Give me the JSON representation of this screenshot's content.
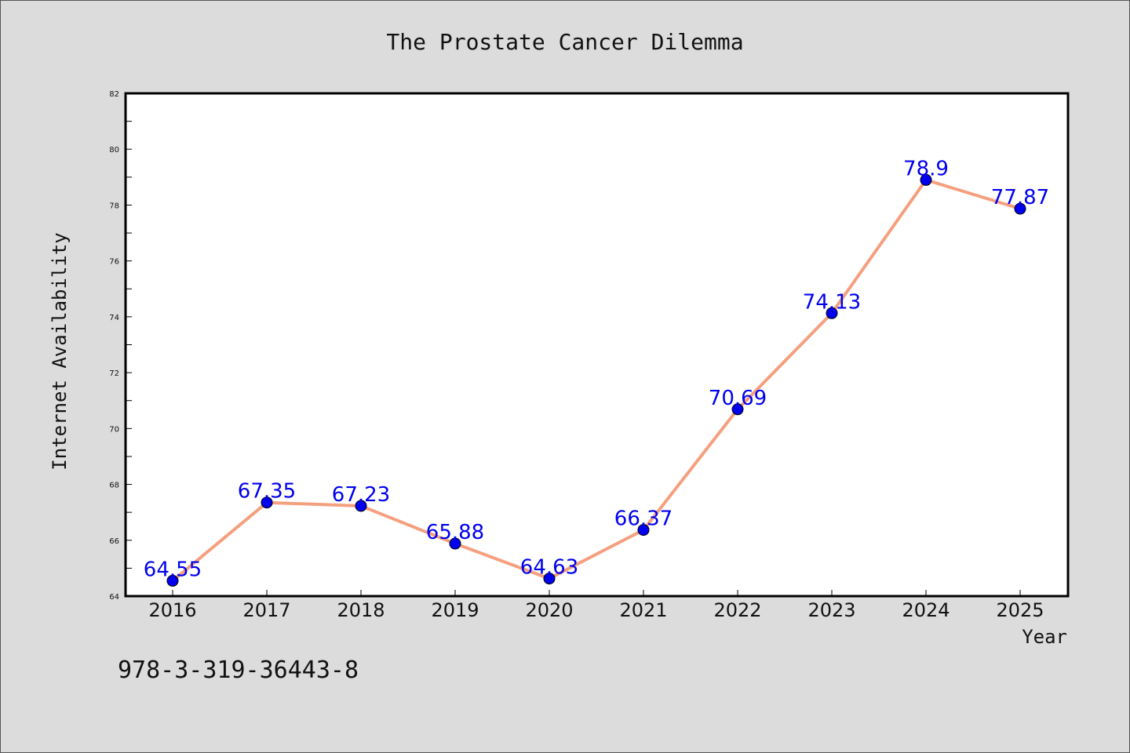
{
  "chart_data": {
    "type": "line",
    "title": "The Prostate Cancer Dilemma",
    "xlabel": "Year",
    "ylabel": "Internet Availability",
    "categories": [
      "2016",
      "2017",
      "2018",
      "2019",
      "2020",
      "2021",
      "2022",
      "2023",
      "2024",
      "2025"
    ],
    "series": [
      {
        "values": [
          64.55,
          67.35,
          67.23,
          65.88,
          64.63,
          66.37,
          70.69,
          74.13,
          78.9,
          77.87
        ],
        "data_labels": [
          "64.55",
          "67.35",
          "67.23",
          "65.88",
          "64.63",
          "66.37",
          "70.69",
          "74.13",
          "78.9",
          "77.87"
        ],
        "line_color": "#f4a07f",
        "marker_color": "#0000ee",
        "label_color": "#0000ee"
      }
    ],
    "ylim": [
      64,
      82
    ],
    "yticks": [
      64,
      66,
      68,
      70,
      72,
      74,
      76,
      78,
      80,
      82
    ],
    "ytick_labels": [
      "64",
      "66",
      "68",
      "70",
      "72",
      "74",
      "76",
      "78",
      "80",
      "82"
    ],
    "grid": false,
    "legend": "none"
  },
  "footer": {
    "text": "978-3-319-36443-8"
  },
  "colors": {
    "background": "#dcdcdc",
    "plot_background": "#ffffff",
    "axis": "#000000"
  }
}
